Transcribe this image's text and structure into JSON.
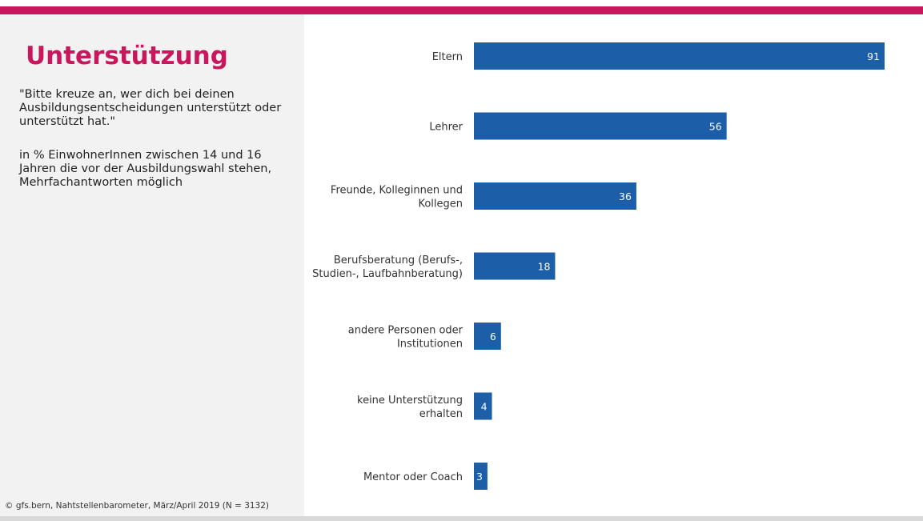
{
  "header": {
    "title": "Unterstützung",
    "question": "\"Bitte kreuze an, wer dich bei deinen Ausbildungsentscheidungen unterstützt oder unterstützt hat.\"",
    "note": " in % EinwohnerInnen zwischen 14 und 16 Jahren die vor der Ausbildungswahl stehen,\nMehrfachantworten möglich"
  },
  "footer": {
    "source": "© gfs.bern, Nahtstellenbarometer, März/April 2019 (N = 3132)"
  },
  "colors": {
    "accent": "#c8175d",
    "bar": "#1c5ea8",
    "panel": "#f2f2f2"
  },
  "chart_data": {
    "type": "bar",
    "orientation": "horizontal",
    "categories": [
      "Eltern",
      "Lehrer",
      "Freunde, Kolleginnen und Kollegen",
      "Berufsberatung (Berufs-, Studien-, Laufbahnberatung)",
      "andere Personen oder Institutionen",
      "keine Unterstützung erhalten",
      "Mentor oder Coach"
    ],
    "category_lines": [
      [
        "Eltern"
      ],
      [
        "Lehrer"
      ],
      [
        "Freunde, Kolleginnen und",
        "Kollegen"
      ],
      [
        "Berufsberatung (Berufs-,",
        "Studien-, Laufbahnberatung)"
      ],
      [
        "andere Personen oder",
        "Institutionen"
      ],
      [
        "keine Unterstützung",
        "erhalten"
      ],
      [
        "Mentor oder Coach"
      ]
    ],
    "values": [
      91,
      56,
      36,
      18,
      6,
      4,
      3
    ],
    "data_labels": [
      "91",
      "56",
      "36",
      "18",
      "6",
      "4",
      "3"
    ],
    "xlim": [
      0,
      100
    ],
    "grid": false,
    "legend": "none"
  }
}
